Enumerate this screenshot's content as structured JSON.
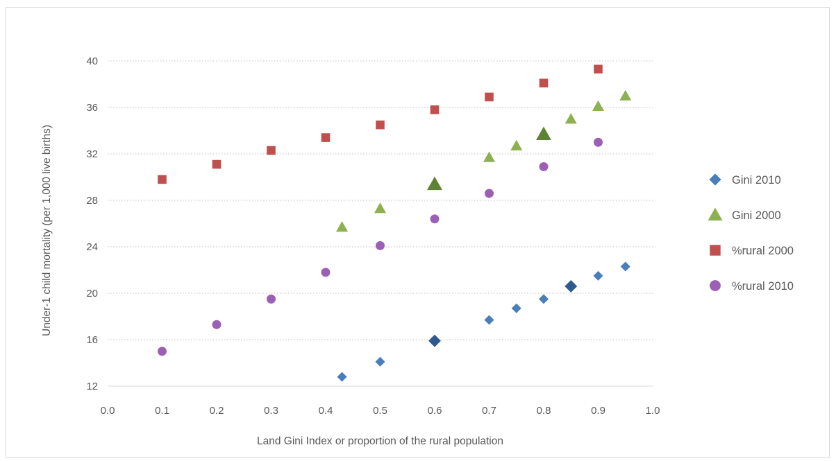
{
  "chart_data": {
    "type": "scatter",
    "xlabel": "Land Gini Index or proportion of the rural population",
    "ylabel": "Under-1 child mortality (per 1,000 live births)",
    "xlim": [
      0.0,
      1.0
    ],
    "ylim": [
      12,
      40
    ],
    "x_ticks": [
      "0.0",
      "0.1",
      "0.2",
      "0.3",
      "0.4",
      "0.5",
      "0.6",
      "0.7",
      "0.8",
      "0.9",
      "1.0"
    ],
    "y_ticks": [
      "12",
      "16",
      "20",
      "24",
      "28",
      "32",
      "36",
      "40"
    ],
    "grid": "horizontal dotted",
    "legend_position": "right",
    "series": [
      {
        "name": "Gini 2010",
        "marker": "diamond",
        "color": "#4a7ebb",
        "highlight_color": "#2e5a8f",
        "points": [
          {
            "x": 0.43,
            "y": 12.8
          },
          {
            "x": 0.5,
            "y": 14.1
          },
          {
            "x": 0.6,
            "y": 15.9,
            "highlight": true
          },
          {
            "x": 0.7,
            "y": 17.7
          },
          {
            "x": 0.75,
            "y": 18.7
          },
          {
            "x": 0.8,
            "y": 19.5
          },
          {
            "x": 0.85,
            "y": 20.6,
            "highlight": true
          },
          {
            "x": 0.9,
            "y": 21.5
          },
          {
            "x": 0.95,
            "y": 22.3
          }
        ]
      },
      {
        "name": "Gini 2000",
        "marker": "triangle",
        "color": "#8db14f",
        "highlight_color": "#5e8233",
        "points": [
          {
            "x": 0.43,
            "y": 25.7
          },
          {
            "x": 0.5,
            "y": 27.3
          },
          {
            "x": 0.6,
            "y": 29.4,
            "highlight": true
          },
          {
            "x": 0.7,
            "y": 31.7
          },
          {
            "x": 0.75,
            "y": 32.7
          },
          {
            "x": 0.8,
            "y": 33.7,
            "highlight": true
          },
          {
            "x": 0.85,
            "y": 35.0
          },
          {
            "x": 0.9,
            "y": 36.1
          },
          {
            "x": 0.95,
            "y": 37.0
          }
        ]
      },
      {
        "name": "%rural 2000",
        "marker": "square",
        "color": "#c0504d",
        "points": [
          {
            "x": 0.1,
            "y": 29.8
          },
          {
            "x": 0.2,
            "y": 31.1
          },
          {
            "x": 0.3,
            "y": 32.3
          },
          {
            "x": 0.4,
            "y": 33.4
          },
          {
            "x": 0.5,
            "y": 34.5
          },
          {
            "x": 0.6,
            "y": 35.8
          },
          {
            "x": 0.7,
            "y": 36.9
          },
          {
            "x": 0.8,
            "y": 38.1
          },
          {
            "x": 0.9,
            "y": 39.3
          }
        ]
      },
      {
        "name": "%rural 2010",
        "marker": "circle",
        "color": "#9b5fb3",
        "points": [
          {
            "x": 0.1,
            "y": 15.0
          },
          {
            "x": 0.2,
            "y": 17.3
          },
          {
            "x": 0.3,
            "y": 19.5
          },
          {
            "x": 0.4,
            "y": 21.8
          },
          {
            "x": 0.5,
            "y": 24.1
          },
          {
            "x": 0.6,
            "y": 26.4
          },
          {
            "x": 0.7,
            "y": 28.6
          },
          {
            "x": 0.8,
            "y": 30.9
          },
          {
            "x": 0.9,
            "y": 33.0
          }
        ]
      }
    ]
  }
}
